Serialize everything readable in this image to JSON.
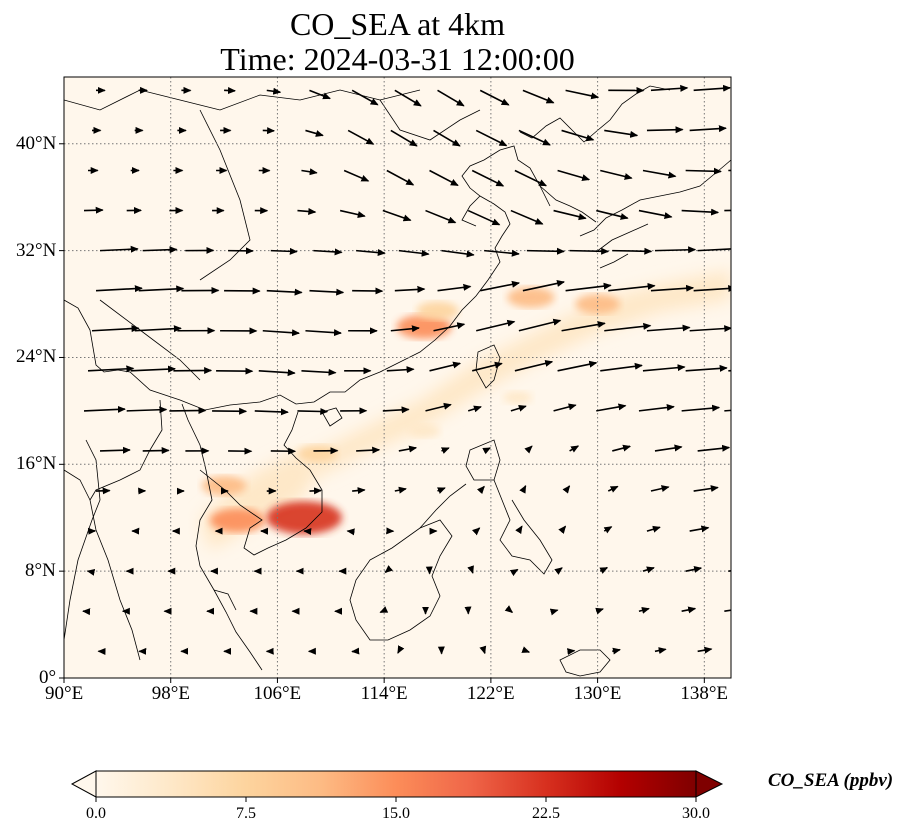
{
  "title": {
    "line1": "CO_SEA at 4km",
    "line2": "Time: 2024-03-31 12:00:00"
  },
  "map": {
    "lon_range": [
      90,
      140
    ],
    "lat_range": [
      0,
      45
    ],
    "gridlines": true,
    "gridline_style": "dotted",
    "lon_ticks": [
      {
        "value": 90,
        "label": "90°E"
      },
      {
        "value": 98,
        "label": "98°E"
      },
      {
        "value": 106,
        "label": "106°E"
      },
      {
        "value": 114,
        "label": "114°E"
      },
      {
        "value": 122,
        "label": "122°E"
      },
      {
        "value": 130,
        "label": "130°E"
      },
      {
        "value": 138,
        "label": "138°E"
      }
    ],
    "lat_ticks": [
      {
        "value": 0,
        "label": "0°"
      },
      {
        "value": 8,
        "label": "8°N"
      },
      {
        "value": 16,
        "label": "16°N"
      },
      {
        "value": 24,
        "label": "24°N"
      },
      {
        "value": 32,
        "label": "32°N"
      },
      {
        "value": 40,
        "label": "40°N"
      }
    ],
    "wind_vectors": "shown as black arrows"
  },
  "colorbar": {
    "label": "CO_SEA (ppbv)",
    "min": 0.0,
    "max": 30.0,
    "extend": "both",
    "colormap": [
      "#fff7ec",
      "#fee8c8",
      "#fdd49e",
      "#fdbb84",
      "#fc8d59",
      "#ef6548",
      "#d7301f",
      "#b30000",
      "#7f0000"
    ],
    "ticks": [
      "0.0",
      "7.5",
      "15.0",
      "22.5",
      "30.0"
    ],
    "tick_values": [
      0,
      7.5,
      15,
      22.5,
      30
    ]
  },
  "chart_data": {
    "type": "heatmap",
    "title": "CO_SEA at 4km",
    "subtitle": "Time: 2024-03-31 12:00:00",
    "xlabel": "",
    "ylabel": "",
    "x_range": [
      90,
      140
    ],
    "y_range": [
      0,
      45
    ],
    "colorbar_range": [
      0,
      30
    ],
    "plumes": [
      {
        "lon": 117,
        "lat": 26.3,
        "value": 14
      },
      {
        "lon": 118,
        "lat": 27.5,
        "value": 9
      },
      {
        "lon": 125,
        "lat": 28.5,
        "value": 11
      },
      {
        "lon": 130,
        "lat": 28.0,
        "value": 10
      },
      {
        "lon": 108,
        "lat": 12.0,
        "value": 22
      },
      {
        "lon": 103,
        "lat": 11.8,
        "value": 14
      },
      {
        "lon": 102,
        "lat": 14.4,
        "value": 10
      },
      {
        "lon": 109,
        "lat": 16.8,
        "value": 8
      },
      {
        "lon": 117,
        "lat": 18.5,
        "value": 5
      },
      {
        "lon": 124,
        "lat": 21.0,
        "value": 4
      }
    ],
    "wind_samples": [
      {
        "lon": 94,
        "lat": 26.5,
        "u": 18,
        "v": 1
      },
      {
        "lon": 100,
        "lat": 26.0,
        "u": 14,
        "v": 0
      },
      {
        "lon": 106,
        "lat": 25.0,
        "u": 14,
        "v": -1
      },
      {
        "lon": 112,
        "lat": 22.0,
        "u": 10,
        "v": 0
      },
      {
        "lon": 118,
        "lat": 22.0,
        "u": 12,
        "v": 3
      },
      {
        "lon": 124,
        "lat": 26.0,
        "u": 16,
        "v": 4
      },
      {
        "lon": 130,
        "lat": 28.0,
        "u": 18,
        "v": 2
      },
      {
        "lon": 136,
        "lat": 28.0,
        "u": 16,
        "v": 1
      },
      {
        "lon": 116,
        "lat": 42.0,
        "u": 10,
        "v": -6
      },
      {
        "lon": 122,
        "lat": 38.0,
        "u": 12,
        "v": -6
      },
      {
        "lon": 130,
        "lat": 36.0,
        "u": 12,
        "v": -3
      },
      {
        "lon": 136,
        "lat": 44.0,
        "u": 14,
        "v": 1
      },
      {
        "lon": 96,
        "lat": 40.0,
        "u": 3,
        "v": 0
      },
      {
        "lon": 102,
        "lat": 38.0,
        "u": 4,
        "v": 0
      },
      {
        "lon": 120,
        "lat": 18.0,
        "u": 2,
        "v": 1
      },
      {
        "lon": 124,
        "lat": 14.0,
        "u": 1,
        "v": 2
      },
      {
        "lon": 100,
        "lat": 8.0,
        "u": -2,
        "v": 0
      },
      {
        "lon": 110,
        "lat": 6.0,
        "u": -2,
        "v": 0
      },
      {
        "lon": 118,
        "lat": 6.0,
        "u": 0,
        "v": -1
      }
    ]
  }
}
